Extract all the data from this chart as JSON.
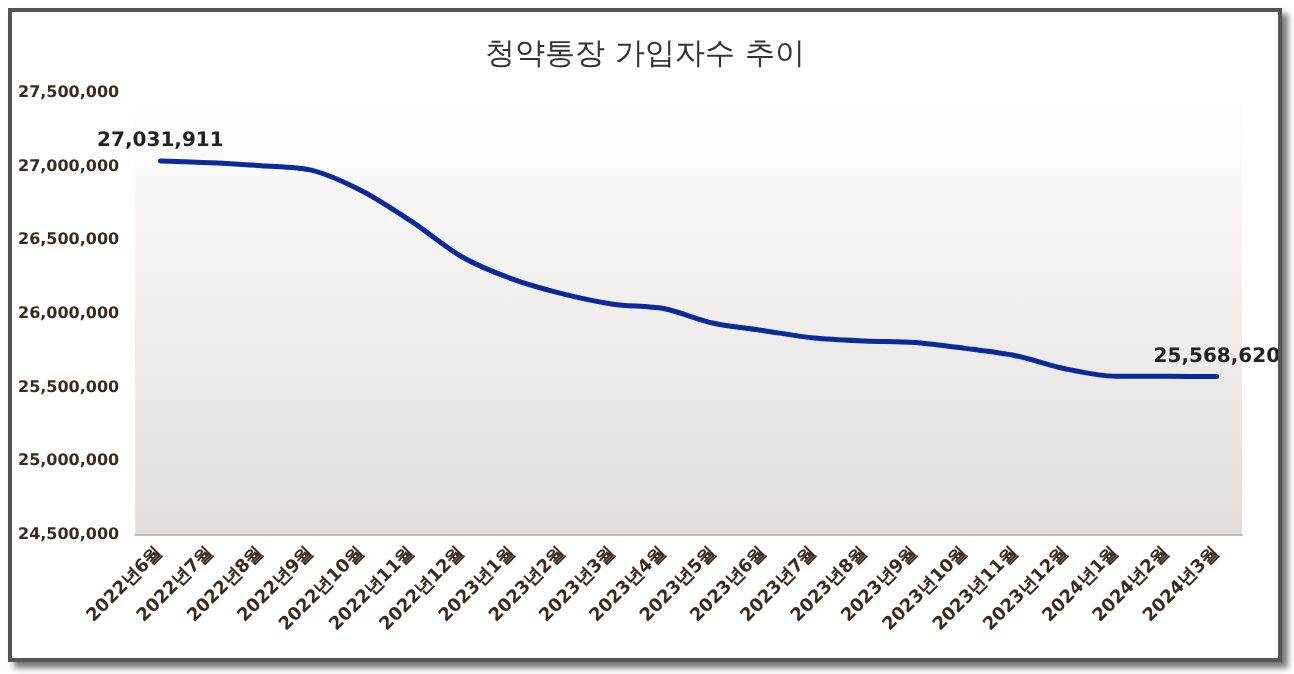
{
  "chart_data": {
    "type": "line",
    "title": "청약통장 가입자수 추이",
    "categories": [
      "2022년6월",
      "2022년7월",
      "2022년8월",
      "2022년9월",
      "2022년10월",
      "2022년11월",
      "2022년12월",
      "2023년1월",
      "2023년2월",
      "2023년3월",
      "2023년4월",
      "2023년5월",
      "2023년6월",
      "2023년7월",
      "2023년8월",
      "2023년9월",
      "2023년10월",
      "2023년11월",
      "2023년12월",
      "2024년1월",
      "2024년2월",
      "2024년3월"
    ],
    "series": [
      {
        "color": "#0a2a9c",
        "values": [
          27031911,
          27020000,
          27000000,
          26970000,
          26830000,
          26620000,
          26380000,
          26230000,
          26130000,
          26060000,
          26030000,
          25930000,
          25880000,
          25830000,
          25810000,
          25800000,
          25760000,
          25710000,
          25620000,
          25570000,
          25570000,
          25568620
        ],
        "value_labels": [
          "27,031,911",
          null,
          null,
          null,
          null,
          null,
          null,
          null,
          null,
          null,
          null,
          null,
          null,
          null,
          null,
          null,
          null,
          null,
          null,
          null,
          null,
          "25,568,620"
        ]
      }
    ],
    "ylim": [
      24500000,
      27500000
    ],
    "yticks": [
      {
        "value": 24500000,
        "label": "24,500,000"
      },
      {
        "value": 25000000,
        "label": "25,000,000"
      },
      {
        "value": 25500000,
        "label": "25,500,000"
      },
      {
        "value": 26000000,
        "label": "26,000,000"
      },
      {
        "value": 26500000,
        "label": "26,500,000"
      },
      {
        "value": 27000000,
        "label": "27,000,000"
      },
      {
        "value": 27500000,
        "label": "27,500,000"
      }
    ],
    "grid": false,
    "marker": "none",
    "line_style": "solid"
  }
}
